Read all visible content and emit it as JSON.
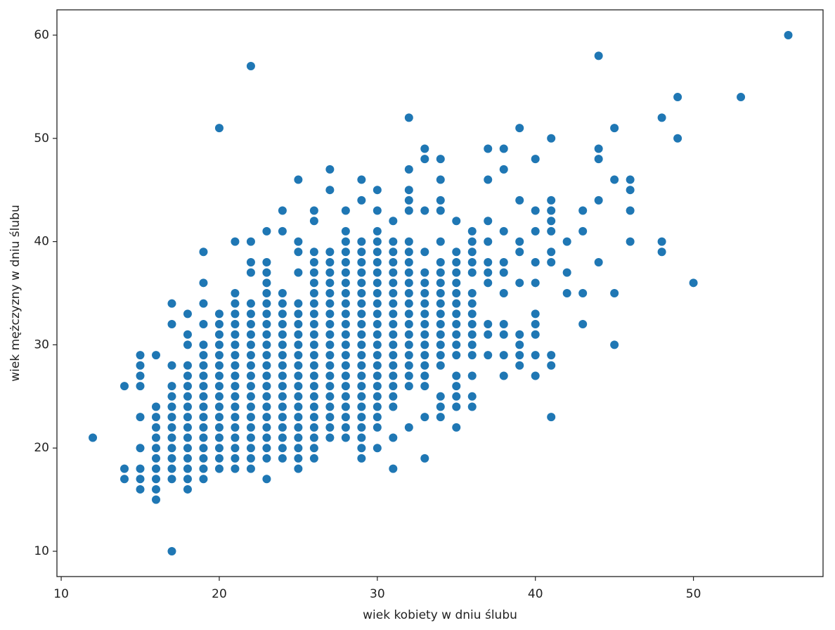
{
  "chart_data": {
    "type": "scatter",
    "xlabel": "wiek kobiety w dniu ślubu",
    "ylabel": "wiek mężczyzny w dniu ślubu",
    "color": "#1f77b4",
    "xlim": [
      9.73,
      58.2
    ],
    "ylim": [
      7.55,
      62.45
    ],
    "xticks": [
      10,
      20,
      30,
      40,
      50
    ],
    "yticks": [
      10,
      20,
      30,
      40,
      50,
      60
    ],
    "x": [
      12,
      14,
      14,
      14,
      15,
      15,
      15,
      15,
      15,
      15,
      15,
      15,
      15,
      16,
      16,
      16,
      16,
      16,
      16,
      16,
      16,
      16,
      16,
      16,
      17,
      17,
      17,
      17,
      17,
      17,
      17,
      17,
      17,
      17,
      17,
      17,
      17,
      17,
      18,
      18,
      18,
      18,
      18,
      18,
      18,
      18,
      18,
      18,
      18,
      18,
      18,
      18,
      18,
      18,
      19,
      19,
      19,
      19,
      19,
      19,
      19,
      19,
      19,
      19,
      19,
      19,
      19,
      19,
      19,
      19,
      19,
      19,
      20,
      20,
      20,
      20,
      20,
      20,
      20,
      20,
      20,
      20,
      20,
      20,
      20,
      20,
      20,
      20,
      20,
      21,
      21,
      21,
      21,
      21,
      21,
      21,
      21,
      21,
      21,
      21,
      21,
      21,
      21,
      21,
      21,
      21,
      21,
      21,
      22,
      22,
      22,
      22,
      22,
      22,
      22,
      22,
      22,
      22,
      22,
      22,
      22,
      22,
      22,
      22,
      22,
      22,
      22,
      22,
      22,
      23,
      23,
      23,
      23,
      23,
      23,
      23,
      23,
      23,
      23,
      23,
      23,
      23,
      23,
      23,
      23,
      23,
      23,
      23,
      23,
      23,
      23,
      24,
      24,
      24,
      24,
      24,
      24,
      24,
      24,
      24,
      24,
      24,
      24,
      24,
      24,
      24,
      24,
      24,
      24,
      24,
      25,
      25,
      25,
      25,
      25,
      25,
      25,
      25,
      25,
      25,
      25,
      25,
      25,
      25,
      25,
      25,
      25,
      25,
      25,
      25,
      25,
      26,
      26,
      26,
      26,
      26,
      26,
      26,
      26,
      26,
      26,
      26,
      26,
      26,
      26,
      26,
      26,
      26,
      26,
      26,
      26,
      26,
      26,
      26,
      27,
      27,
      27,
      27,
      27,
      27,
      27,
      27,
      27,
      27,
      27,
      27,
      27,
      27,
      27,
      27,
      27,
      27,
      27,
      27,
      27,
      28,
      28,
      28,
      28,
      28,
      28,
      28,
      28,
      28,
      28,
      28,
      28,
      28,
      28,
      28,
      28,
      28,
      28,
      28,
      28,
      28,
      28,
      29,
      29,
      29,
      29,
      29,
      29,
      29,
      29,
      29,
      29,
      29,
      29,
      29,
      29,
      29,
      29,
      29,
      29,
      29,
      29,
      29,
      29,
      29,
      29,
      30,
      30,
      30,
      30,
      30,
      30,
      30,
      30,
      30,
      30,
      30,
      30,
      30,
      30,
      30,
      30,
      30,
      30,
      30,
      30,
      30,
      30,
      30,
      31,
      31,
      31,
      31,
      31,
      31,
      31,
      31,
      31,
      31,
      31,
      31,
      31,
      31,
      31,
      31,
      31,
      31,
      31,
      31,
      32,
      32,
      32,
      32,
      32,
      32,
      32,
      32,
      32,
      32,
      32,
      32,
      32,
      32,
      32,
      32,
      32,
      32,
      32,
      32,
      32,
      33,
      33,
      33,
      33,
      33,
      33,
      33,
      33,
      33,
      33,
      33,
      33,
      33,
      33,
      33,
      33,
      33,
      33,
      34,
      34,
      34,
      34,
      34,
      34,
      34,
      34,
      34,
      34,
      34,
      34,
      34,
      34,
      34,
      34,
      34,
      34,
      34,
      35,
      35,
      35,
      35,
      35,
      35,
      35,
      35,
      35,
      35,
      35,
      35,
      35,
      35,
      35,
      35,
      35,
      36,
      36,
      36,
      36,
      36,
      36,
      36,
      36,
      36,
      36,
      36,
      36,
      36,
      36,
      36,
      37,
      37,
      37,
      37,
      37,
      37,
      37,
      37,
      37,
      37,
      38,
      38,
      38,
      38,
      38,
      38,
      38,
      38,
      38,
      38,
      39,
      39,
      39,
      39,
      39,
      39,
      39,
      39,
      39,
      40,
      40,
      40,
      40,
      40,
      40,
      40,
      40,
      40,
      40,
      41,
      41,
      41,
      41,
      41,
      41,
      41,
      41,
      41,
      41,
      42,
      42,
      42,
      43,
      43,
      43,
      43,
      44,
      44,
      44,
      44,
      44,
      45,
      45,
      45,
      45,
      46,
      46,
      46,
      46,
      48,
      48,
      48,
      49,
      49,
      50,
      53,
      56
    ],
    "values": [
      21,
      26,
      18,
      17,
      29,
      28,
      27,
      26,
      23,
      20,
      18,
      17,
      16,
      29,
      24,
      23,
      22,
      21,
      20,
      19,
      18,
      17,
      16,
      15,
      34,
      32,
      28,
      26,
      25,
      24,
      23,
      22,
      21,
      20,
      19,
      18,
      17,
      10,
      33,
      31,
      30,
      28,
      27,
      26,
      25,
      24,
      23,
      22,
      21,
      20,
      19,
      18,
      17,
      16,
      39,
      36,
      34,
      32,
      30,
      29,
      28,
      27,
      26,
      25,
      24,
      23,
      22,
      21,
      20,
      19,
      18,
      17,
      51,
      33,
      32,
      31,
      30,
      29,
      28,
      27,
      26,
      25,
      24,
      23,
      22,
      21,
      20,
      19,
      18,
      40,
      35,
      34,
      33,
      32,
      31,
      30,
      29,
      28,
      27,
      26,
      25,
      24,
      23,
      22,
      21,
      20,
      19,
      18,
      57,
      40,
      38,
      37,
      34,
      33,
      32,
      31,
      30,
      29,
      28,
      27,
      26,
      25,
      24,
      23,
      22,
      21,
      20,
      19,
      18,
      41,
      38,
      37,
      36,
      35,
      34,
      33,
      32,
      31,
      30,
      29,
      28,
      27,
      26,
      25,
      24,
      23,
      22,
      21,
      20,
      19,
      17,
      43,
      41,
      35,
      34,
      33,
      32,
      31,
      30,
      29,
      28,
      27,
      26,
      25,
      24,
      23,
      22,
      21,
      20,
      19,
      46,
      40,
      39,
      37,
      34,
      33,
      32,
      31,
      30,
      29,
      28,
      27,
      26,
      25,
      24,
      23,
      22,
      21,
      20,
      19,
      18,
      43,
      42,
      39,
      38,
      37,
      36,
      35,
      34,
      33,
      32,
      31,
      30,
      29,
      28,
      27,
      26,
      25,
      24,
      23,
      22,
      21,
      20,
      19,
      47,
      45,
      39,
      38,
      37,
      36,
      35,
      34,
      33,
      32,
      31,
      30,
      29,
      28,
      27,
      26,
      25,
      24,
      23,
      22,
      21,
      43,
      41,
      40,
      39,
      38,
      37,
      36,
      35,
      34,
      33,
      32,
      31,
      30,
      29,
      28,
      27,
      26,
      25,
      24,
      23,
      22,
      21,
      46,
      44,
      40,
      39,
      38,
      37,
      36,
      35,
      34,
      33,
      32,
      31,
      30,
      29,
      28,
      27,
      26,
      25,
      24,
      23,
      22,
      21,
      20,
      19,
      45,
      43,
      41,
      40,
      39,
      38,
      37,
      36,
      35,
      34,
      33,
      32,
      31,
      30,
      29,
      28,
      27,
      26,
      25,
      24,
      23,
      22,
      20,
      42,
      40,
      39,
      38,
      37,
      36,
      35,
      34,
      33,
      32,
      31,
      30,
      29,
      28,
      27,
      26,
      25,
      24,
      21,
      18,
      52,
      47,
      45,
      44,
      43,
      40,
      39,
      38,
      37,
      36,
      35,
      34,
      33,
      32,
      31,
      30,
      29,
      28,
      27,
      26,
      22,
      49,
      48,
      43,
      39,
      37,
      36,
      35,
      34,
      33,
      32,
      31,
      30,
      29,
      28,
      27,
      26,
      23,
      19,
      48,
      46,
      44,
      43,
      40,
      38,
      37,
      36,
      35,
      34,
      33,
      32,
      31,
      30,
      29,
      28,
      25,
      24,
      23,
      42,
      39,
      38,
      37,
      36,
      35,
      34,
      33,
      32,
      31,
      30,
      29,
      27,
      26,
      25,
      24,
      22,
      41,
      40,
      39,
      38,
      37,
      35,
      34,
      33,
      32,
      31,
      30,
      29,
      27,
      25,
      24,
      49,
      46,
      42,
      40,
      38,
      37,
      36,
      32,
      31,
      29,
      49,
      47,
      41,
      38,
      37,
      35,
      32,
      31,
      29,
      27,
      51,
      44,
      40,
      39,
      36,
      31,
      30,
      29,
      28,
      48,
      43,
      41,
      38,
      36,
      33,
      32,
      31,
      29,
      27,
      50,
      44,
      43,
      42,
      41,
      39,
      38,
      29,
      28,
      23,
      40,
      37,
      35,
      43,
      41,
      35,
      32,
      58,
      49,
      48,
      44,
      38,
      51,
      46,
      35,
      30,
      46,
      45,
      43,
      40,
      52,
      40,
      39,
      54,
      50,
      36,
      54,
      60
    ]
  }
}
